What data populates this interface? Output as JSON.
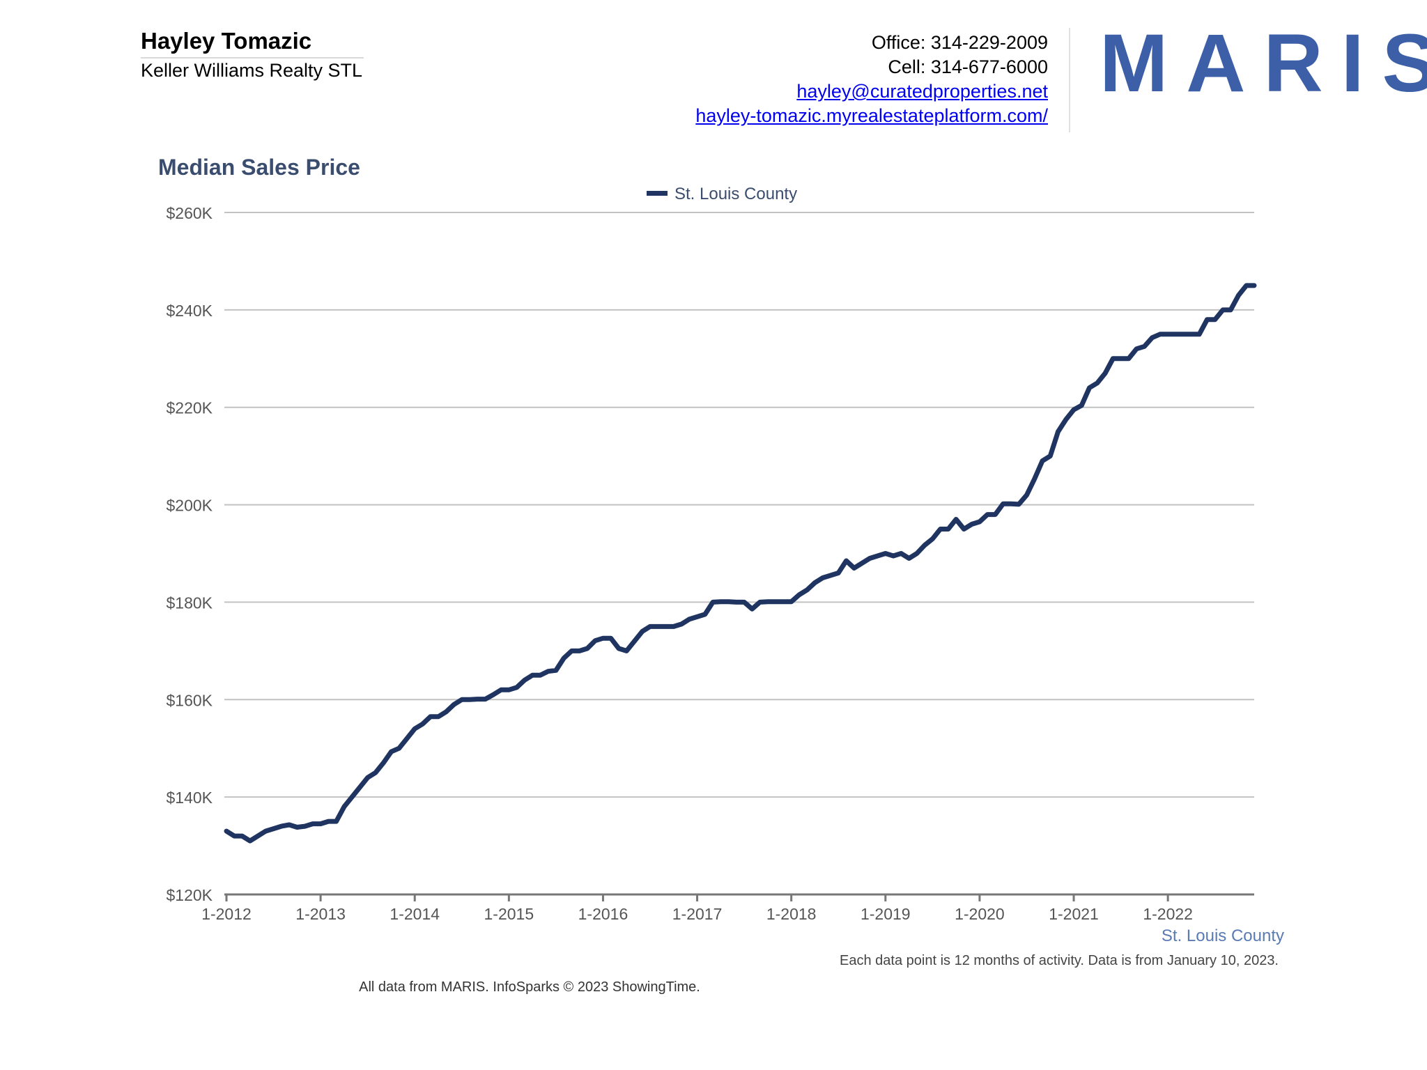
{
  "header": {
    "agent_name": "Hayley Tomazic",
    "agent_company": "Keller Williams Realty STL",
    "office": "Office: 314-229-2009",
    "cell": "Cell: 314-677-6000",
    "email": "hayley@curatedproperties.net",
    "website": "hayley-tomazic.myrealestateplatform.com/",
    "logo_text": "MARIS"
  },
  "chart_data": {
    "type": "line",
    "title": "Median Sales Price",
    "xlabel": "",
    "ylabel": "",
    "ylim": [
      120000,
      260000
    ],
    "yticks": [
      120000,
      140000,
      160000,
      180000,
      200000,
      220000,
      240000,
      260000
    ],
    "ytick_labels": [
      "$120K",
      "$140K",
      "$160K",
      "$180K",
      "$200K",
      "$220K",
      "$240K",
      "$260K"
    ],
    "xticks": [
      "1-2012",
      "1-2013",
      "1-2014",
      "1-2015",
      "1-2016",
      "1-2017",
      "1-2018",
      "1-2019",
      "1-2020",
      "1-2021",
      "1-2022"
    ],
    "x_start": "1-2012",
    "x_end": "12-2022",
    "grid": true,
    "legend_position": "top-center",
    "series": [
      {
        "name": "St. Louis County",
        "color": "#1f3460",
        "values": [
          133000,
          132000,
          132000,
          131000,
          132000,
          133000,
          133500,
          134000,
          134300,
          133800,
          134000,
          134500,
          134500,
          135000,
          135000,
          138000,
          140000,
          142000,
          144000,
          145000,
          147000,
          149300,
          150000,
          152000,
          154000,
          155000,
          156500,
          156500,
          157500,
          159000,
          160000,
          160000,
          160100,
          160100,
          161000,
          162000,
          162000,
          162500,
          164000,
          165000,
          165000,
          165800,
          166000,
          168500,
          170000,
          170000,
          170500,
          172100,
          172600,
          172600,
          170500,
          170000,
          172000,
          174000,
          175000,
          175000,
          175000,
          175000,
          175500,
          176500,
          177000,
          177500,
          180000,
          180100,
          180100,
          180000,
          180000,
          178600,
          180000,
          180100,
          180100,
          180100,
          180100,
          181500,
          182500,
          184000,
          185000,
          185500,
          186000,
          188500,
          187000,
          188000,
          189000,
          189500,
          190000,
          189500,
          190000,
          189000,
          190000,
          191700,
          193000,
          195000,
          195000,
          197000,
          195000,
          196000,
          196500,
          198000,
          198000,
          200200,
          200200,
          200100,
          202000,
          205300,
          209000,
          210000,
          215000,
          217500,
          219500,
          220400,
          224000,
          225000,
          227000,
          230000,
          230000,
          230000,
          232000,
          232500,
          234300,
          235000,
          235000,
          235000,
          235000,
          235000,
          235000,
          238000,
          238000,
          240000,
          240000,
          243000,
          245000,
          245000
        ]
      }
    ],
    "footnote_series": "St. Louis County",
    "footnote": "Each data point is 12 months of activity. Data is from January 10, 2023."
  },
  "footer": {
    "credit": "All data from MARIS. InfoSparks © 2023 ShowingTime."
  }
}
